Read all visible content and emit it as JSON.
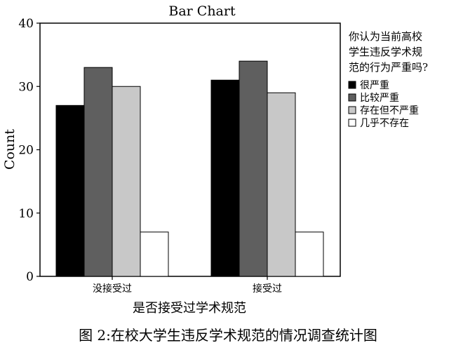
{
  "chart_data": {
    "type": "bar",
    "title": "Bar Chart",
    "xlabel": "是否接受过学术规范",
    "ylabel": "Count",
    "categories": [
      "没接受过",
      "接受过"
    ],
    "ylim": [
      0,
      40
    ],
    "yticks": [
      0,
      10,
      20,
      30,
      40
    ],
    "grid": false,
    "legend_title": "你认为当前高校学生违反学术规范的行为严重吗?",
    "legend_placement": "right",
    "series": [
      {
        "name": "很严重",
        "values": [
          27,
          31
        ],
        "color": "#000000"
      },
      {
        "name": "比较严重",
        "values": [
          33,
          34
        ],
        "color": "#5f5f5f"
      },
      {
        "name": "存在但不严重",
        "values": [
          30,
          29
        ],
        "color": "#c8c8c8"
      },
      {
        "name": "几乎不存在",
        "values": [
          7,
          7
        ],
        "color": "#ffffff"
      }
    ]
  },
  "caption": "图 2:在校大学生违反学术规范的情况调查统计图"
}
